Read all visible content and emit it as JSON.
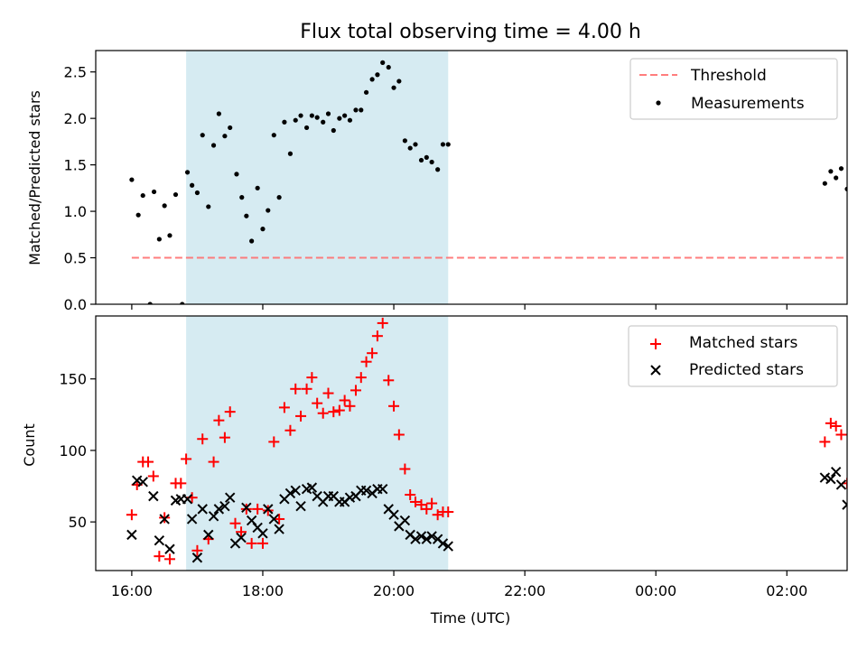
{
  "chart_data": [
    {
      "type": "scatter",
      "title": "Flux total observing time = 4.00 h",
      "xlabel": "",
      "ylabel": "Matched/Predicted stars",
      "ylim": [
        0,
        2.73
      ],
      "x_domain_hours": [
        15.45,
        26.92
      ],
      "yticks": [
        {
          "value": 0,
          "label": "0.0"
        },
        {
          "value": 0.5,
          "label": "0.5"
        },
        {
          "value": 1.0,
          "label": "1.0"
        },
        {
          "value": 1.5,
          "label": "1.5"
        },
        {
          "value": 2.0,
          "label": "2.0"
        },
        {
          "value": 2.5,
          "label": "2.5"
        }
      ],
      "shaded_interval_hours": [
        16.83,
        20.83
      ],
      "shaded_color": "#add8e6",
      "legend_position": "upper right",
      "threshold": {
        "name": "Threshold",
        "value": 0.5,
        "x_range_hours": [
          16.0,
          26.92
        ],
        "color": "#ff6f6f",
        "style": "dashed"
      },
      "series": [
        {
          "name": "Measurements",
          "color": "#000000",
          "marker": "dot",
          "points": [
            [
              16.0,
              1.34
            ],
            [
              16.1,
              0.96
            ],
            [
              16.17,
              1.17
            ],
            [
              16.28,
              0.0
            ],
            [
              16.34,
              1.21
            ],
            [
              16.42,
              0.7
            ],
            [
              16.5,
              1.06
            ],
            [
              16.58,
              0.74
            ],
            [
              16.67,
              1.18
            ],
            [
              16.77,
              0.0
            ],
            [
              16.85,
              1.42
            ],
            [
              16.92,
              1.28
            ],
            [
              17.0,
              1.2
            ],
            [
              17.08,
              1.82
            ],
            [
              17.17,
              1.05
            ],
            [
              17.25,
              1.71
            ],
            [
              17.33,
              2.05
            ],
            [
              17.42,
              1.81
            ],
            [
              17.5,
              1.9
            ],
            [
              17.6,
              1.4
            ],
            [
              17.68,
              1.15
            ],
            [
              17.75,
              0.95
            ],
            [
              17.83,
              0.68
            ],
            [
              17.92,
              1.25
            ],
            [
              18.0,
              0.81
            ],
            [
              18.08,
              1.01
            ],
            [
              18.17,
              1.82
            ],
            [
              18.25,
              1.15
            ],
            [
              18.33,
              1.96
            ],
            [
              18.42,
              1.62
            ],
            [
              18.5,
              1.98
            ],
            [
              18.58,
              2.03
            ],
            [
              18.67,
              1.9
            ],
            [
              18.75,
              2.03
            ],
            [
              18.83,
              2.01
            ],
            [
              18.92,
              1.96
            ],
            [
              19.0,
              2.05
            ],
            [
              19.08,
              1.87
            ],
            [
              19.17,
              2.0
            ],
            [
              19.25,
              2.03
            ],
            [
              19.33,
              1.98
            ],
            [
              19.42,
              2.09
            ],
            [
              19.5,
              2.09
            ],
            [
              19.58,
              2.28
            ],
            [
              19.67,
              2.42
            ],
            [
              19.75,
              2.47
            ],
            [
              19.83,
              2.6
            ],
            [
              19.92,
              2.55
            ],
            [
              20.0,
              2.33
            ],
            [
              20.08,
              2.4
            ],
            [
              20.17,
              1.76
            ],
            [
              20.25,
              1.68
            ],
            [
              20.33,
              1.72
            ],
            [
              20.42,
              1.55
            ],
            [
              20.5,
              1.58
            ],
            [
              20.58,
              1.53
            ],
            [
              20.67,
              1.45
            ],
            [
              20.75,
              1.72
            ],
            [
              20.83,
              1.72
            ],
            [
              26.58,
              1.3
            ],
            [
              26.67,
              1.43
            ],
            [
              26.75,
              1.36
            ],
            [
              26.83,
              1.46
            ],
            [
              26.92,
              1.24
            ]
          ]
        }
      ],
      "legend": [
        "Threshold",
        "Measurements"
      ]
    },
    {
      "type": "scatter",
      "title": "",
      "xlabel": "Time (UTC)",
      "ylabel": "Count",
      "ylim": [
        16,
        194
      ],
      "x_domain_hours": [
        15.45,
        26.92
      ],
      "xticks": [
        {
          "value": 16,
          "label": "16:00"
        },
        {
          "value": 18,
          "label": "18:00"
        },
        {
          "value": 20,
          "label": "20:00"
        },
        {
          "value": 22,
          "label": "22:00"
        },
        {
          "value": 24,
          "label": "00:00"
        },
        {
          "value": 26,
          "label": "02:00"
        }
      ],
      "yticks": [
        {
          "value": 50,
          "label": "50"
        },
        {
          "value": 100,
          "label": "100"
        },
        {
          "value": 150,
          "label": "150"
        }
      ],
      "shaded_interval_hours": [
        16.83,
        20.83
      ],
      "shaded_color": "#add8e6",
      "legend_position": "upper right",
      "series": [
        {
          "name": "Matched stars",
          "color": "#ff0000",
          "marker": "plus",
          "points": [
            [
              16.0,
              55
            ],
            [
              16.08,
              76
            ],
            [
              16.17,
              92
            ],
            [
              16.25,
              92
            ],
            [
              16.33,
              82
            ],
            [
              16.42,
              26
            ],
            [
              16.5,
              53
            ],
            [
              16.58,
              24
            ],
            [
              16.67,
              77
            ],
            [
              16.75,
              77
            ],
            [
              16.83,
              94
            ],
            [
              16.92,
              67
            ],
            [
              17.0,
              30
            ],
            [
              17.08,
              108
            ],
            [
              17.17,
              38
            ],
            [
              17.25,
              92
            ],
            [
              17.33,
              121
            ],
            [
              17.42,
              109
            ],
            [
              17.5,
              127
            ],
            [
              17.58,
              49
            ],
            [
              17.67,
              43
            ],
            [
              17.75,
              59
            ],
            [
              17.83,
              35
            ],
            [
              17.92,
              59
            ],
            [
              18.0,
              35
            ],
            [
              18.08,
              58
            ],
            [
              18.17,
              106
            ],
            [
              18.25,
              52
            ],
            [
              18.33,
              130
            ],
            [
              18.42,
              114
            ],
            [
              18.5,
              143
            ],
            [
              18.58,
              124
            ],
            [
              18.67,
              143
            ],
            [
              18.75,
              151
            ],
            [
              18.83,
              133
            ],
            [
              18.92,
              126
            ],
            [
              19.0,
              140
            ],
            [
              19.08,
              127
            ],
            [
              19.17,
              128
            ],
            [
              19.25,
              135
            ],
            [
              19.33,
              131
            ],
            [
              19.42,
              142
            ],
            [
              19.5,
              151
            ],
            [
              19.58,
              162
            ],
            [
              19.67,
              168
            ],
            [
              19.75,
              180
            ],
            [
              19.83,
              189
            ],
            [
              19.92,
              149
            ],
            [
              20.0,
              131
            ],
            [
              20.08,
              111
            ],
            [
              20.17,
              87
            ],
            [
              20.25,
              69
            ],
            [
              20.33,
              64
            ],
            [
              20.42,
              62
            ],
            [
              20.5,
              59
            ],
            [
              20.58,
              63
            ],
            [
              20.67,
              55
            ],
            [
              20.75,
              57
            ],
            [
              20.83,
              57
            ],
            [
              26.58,
              106
            ],
            [
              26.67,
              119
            ],
            [
              26.75,
              117
            ],
            [
              26.83,
              111
            ],
            [
              26.92,
              77
            ]
          ]
        },
        {
          "name": "Predicted stars",
          "color": "#000000",
          "marker": "x",
          "points": [
            [
              16.0,
              41
            ],
            [
              16.08,
              79
            ],
            [
              16.17,
              78
            ],
            [
              16.33,
              68
            ],
            [
              16.42,
              37
            ],
            [
              16.5,
              52
            ],
            [
              16.58,
              31
            ],
            [
              16.67,
              65
            ],
            [
              16.75,
              66
            ],
            [
              16.85,
              66
            ],
            [
              16.92,
              52
            ],
            [
              17.0,
              25
            ],
            [
              17.08,
              59
            ],
            [
              17.17,
              41
            ],
            [
              17.25,
              54
            ],
            [
              17.33,
              59
            ],
            [
              17.42,
              61
            ],
            [
              17.5,
              67
            ],
            [
              17.58,
              35
            ],
            [
              17.67,
              39
            ],
            [
              17.75,
              60
            ],
            [
              17.83,
              51
            ],
            [
              17.92,
              46
            ],
            [
              18.0,
              42
            ],
            [
              18.08,
              59
            ],
            [
              18.17,
              52
            ],
            [
              18.25,
              45
            ],
            [
              18.33,
              66
            ],
            [
              18.42,
              70
            ],
            [
              18.5,
              72
            ],
            [
              18.58,
              61
            ],
            [
              18.67,
              73
            ],
            [
              18.75,
              74
            ],
            [
              18.83,
              68
            ],
            [
              18.92,
              64
            ],
            [
              19.0,
              68
            ],
            [
              19.08,
              68
            ],
            [
              19.17,
              64
            ],
            [
              19.25,
              64
            ],
            [
              19.33,
              67
            ],
            [
              19.42,
              68
            ],
            [
              19.5,
              72
            ],
            [
              19.58,
              72
            ],
            [
              19.67,
              70
            ],
            [
              19.75,
              73
            ],
            [
              19.83,
              73
            ],
            [
              19.92,
              59
            ],
            [
              20.0,
              55
            ],
            [
              20.08,
              47
            ],
            [
              20.17,
              51
            ],
            [
              20.25,
              41
            ],
            [
              20.33,
              38
            ],
            [
              20.42,
              40
            ],
            [
              20.5,
              38
            ],
            [
              20.58,
              40
            ],
            [
              20.67,
              38
            ],
            [
              20.75,
              35
            ],
            [
              20.83,
              33
            ],
            [
              26.58,
              81
            ],
            [
              26.67,
              80
            ],
            [
              26.75,
              85
            ],
            [
              26.83,
              76
            ],
            [
              26.92,
              62
            ]
          ]
        }
      ],
      "legend": [
        "Matched stars",
        "Predicted stars"
      ]
    }
  ]
}
